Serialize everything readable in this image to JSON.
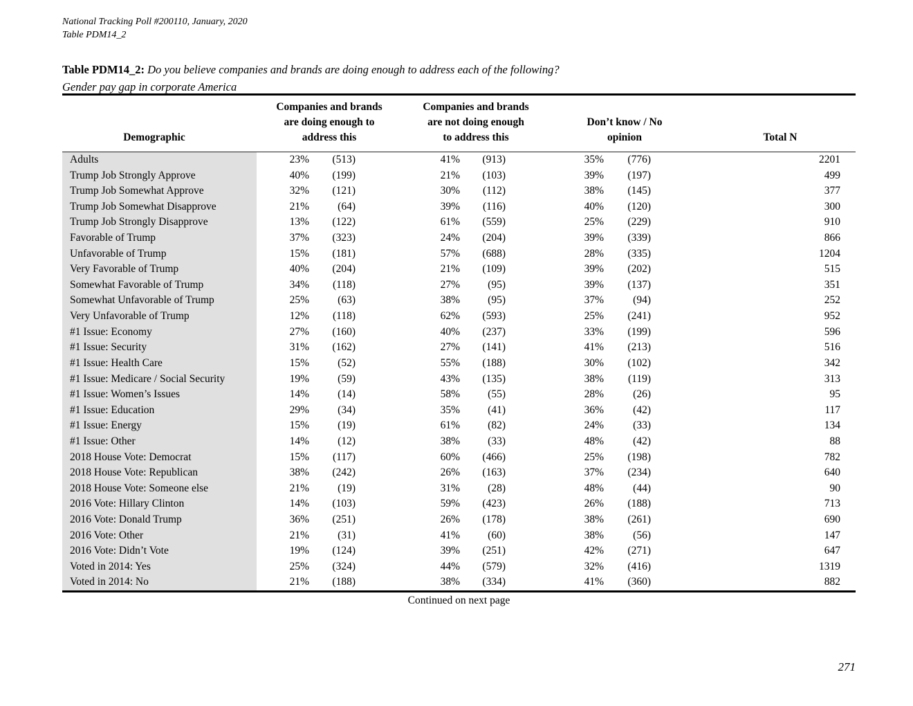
{
  "meta": {
    "line1": "National Tracking Poll #200110, January, 2020",
    "line2": "Table PDM14_2"
  },
  "title": {
    "label": "Table PDM14_2:",
    "question": "Do you believe companies and brands are doing enough to address each of the following?",
    "subtitle": "Gender pay gap in corporate America"
  },
  "table": {
    "headers": {
      "demographic": "Demographic",
      "doing_enough": "Companies and brands\nare doing enough to\naddress this",
      "not_doing_enough": "Companies and brands\nare not doing enough\nto address this",
      "dont_know": "Don’t know / No\nopinion",
      "total_n": "Total N"
    },
    "rows": [
      {
        "label": "Adults",
        "pct1": "23%",
        "n1": "(513)",
        "pct2": "41%",
        "n2": "(913)",
        "pct3": "35%",
        "n3": "(776)",
        "total": "2201"
      },
      {
        "label": "Trump Job Strongly Approve",
        "pct1": "40%",
        "n1": "(199)",
        "pct2": "21%",
        "n2": "(103)",
        "pct3": "39%",
        "n3": "(197)",
        "total": "499"
      },
      {
        "label": "Trump Job Somewhat Approve",
        "pct1": "32%",
        "n1": "(121)",
        "pct2": "30%",
        "n2": "(112)",
        "pct3": "38%",
        "n3": "(145)",
        "total": "377"
      },
      {
        "label": "Trump Job Somewhat Disapprove",
        "pct1": "21%",
        "n1": "(64)",
        "pct2": "39%",
        "n2": "(116)",
        "pct3": "40%",
        "n3": "(120)",
        "total": "300"
      },
      {
        "label": "Trump Job Strongly Disapprove",
        "pct1": "13%",
        "n1": "(122)",
        "pct2": "61%",
        "n2": "(559)",
        "pct3": "25%",
        "n3": "(229)",
        "total": "910"
      },
      {
        "label": "Favorable of Trump",
        "pct1": "37%",
        "n1": "(323)",
        "pct2": "24%",
        "n2": "(204)",
        "pct3": "39%",
        "n3": "(339)",
        "total": "866"
      },
      {
        "label": "Unfavorable of Trump",
        "pct1": "15%",
        "n1": "(181)",
        "pct2": "57%",
        "n2": "(688)",
        "pct3": "28%",
        "n3": "(335)",
        "total": "1204"
      },
      {
        "label": "Very Favorable of Trump",
        "pct1": "40%",
        "n1": "(204)",
        "pct2": "21%",
        "n2": "(109)",
        "pct3": "39%",
        "n3": "(202)",
        "total": "515"
      },
      {
        "label": "Somewhat Favorable of Trump",
        "pct1": "34%",
        "n1": "(118)",
        "pct2": "27%",
        "n2": "(95)",
        "pct3": "39%",
        "n3": "(137)",
        "total": "351"
      },
      {
        "label": "Somewhat Unfavorable of Trump",
        "pct1": "25%",
        "n1": "(63)",
        "pct2": "38%",
        "n2": "(95)",
        "pct3": "37%",
        "n3": "(94)",
        "total": "252"
      },
      {
        "label": "Very Unfavorable of Trump",
        "pct1": "12%",
        "n1": "(118)",
        "pct2": "62%",
        "n2": "(593)",
        "pct3": "25%",
        "n3": "(241)",
        "total": "952"
      },
      {
        "label": "#1 Issue: Economy",
        "pct1": "27%",
        "n1": "(160)",
        "pct2": "40%",
        "n2": "(237)",
        "pct3": "33%",
        "n3": "(199)",
        "total": "596"
      },
      {
        "label": "#1 Issue: Security",
        "pct1": "31%",
        "n1": "(162)",
        "pct2": "27%",
        "n2": "(141)",
        "pct3": "41%",
        "n3": "(213)",
        "total": "516"
      },
      {
        "label": "#1 Issue: Health Care",
        "pct1": "15%",
        "n1": "(52)",
        "pct2": "55%",
        "n2": "(188)",
        "pct3": "30%",
        "n3": "(102)",
        "total": "342"
      },
      {
        "label": "#1 Issue: Medicare / Social Security",
        "pct1": "19%",
        "n1": "(59)",
        "pct2": "43%",
        "n2": "(135)",
        "pct3": "38%",
        "n3": "(119)",
        "total": "313"
      },
      {
        "label": "#1 Issue: Women’s Issues",
        "pct1": "14%",
        "n1": "(14)",
        "pct2": "58%",
        "n2": "(55)",
        "pct3": "28%",
        "n3": "(26)",
        "total": "95"
      },
      {
        "label": "#1 Issue: Education",
        "pct1": "29%",
        "n1": "(34)",
        "pct2": "35%",
        "n2": "(41)",
        "pct3": "36%",
        "n3": "(42)",
        "total": "117"
      },
      {
        "label": "#1 Issue: Energy",
        "pct1": "15%",
        "n1": "(19)",
        "pct2": "61%",
        "n2": "(82)",
        "pct3": "24%",
        "n3": "(33)",
        "total": "134"
      },
      {
        "label": "#1 Issue: Other",
        "pct1": "14%",
        "n1": "(12)",
        "pct2": "38%",
        "n2": "(33)",
        "pct3": "48%",
        "n3": "(42)",
        "total": "88"
      },
      {
        "label": "2018 House Vote: Democrat",
        "pct1": "15%",
        "n1": "(117)",
        "pct2": "60%",
        "n2": "(466)",
        "pct3": "25%",
        "n3": "(198)",
        "total": "782"
      },
      {
        "label": "2018 House Vote: Republican",
        "pct1": "38%",
        "n1": "(242)",
        "pct2": "26%",
        "n2": "(163)",
        "pct3": "37%",
        "n3": "(234)",
        "total": "640"
      },
      {
        "label": "2018 House Vote: Someone else",
        "pct1": "21%",
        "n1": "(19)",
        "pct2": "31%",
        "n2": "(28)",
        "pct3": "48%",
        "n3": "(44)",
        "total": "90"
      },
      {
        "label": "2016 Vote: Hillary Clinton",
        "pct1": "14%",
        "n1": "(103)",
        "pct2": "59%",
        "n2": "(423)",
        "pct3": "26%",
        "n3": "(188)",
        "total": "713"
      },
      {
        "label": "2016 Vote: Donald Trump",
        "pct1": "36%",
        "n1": "(251)",
        "pct2": "26%",
        "n2": "(178)",
        "pct3": "38%",
        "n3": "(261)",
        "total": "690"
      },
      {
        "label": "2016 Vote: Other",
        "pct1": "21%",
        "n1": "(31)",
        "pct2": "41%",
        "n2": "(60)",
        "pct3": "38%",
        "n3": "(56)",
        "total": "147"
      },
      {
        "label": "2016 Vote: Didn’t Vote",
        "pct1": "19%",
        "n1": "(124)",
        "pct2": "39%",
        "n2": "(251)",
        "pct3": "42%",
        "n3": "(271)",
        "total": "647"
      },
      {
        "label": "Voted in 2014: Yes",
        "pct1": "25%",
        "n1": "(324)",
        "pct2": "44%",
        "n2": "(579)",
        "pct3": "32%",
        "n3": "(416)",
        "total": "1319"
      },
      {
        "label": "Voted in 2014: No",
        "pct1": "21%",
        "n1": "(188)",
        "pct2": "38%",
        "n2": "(334)",
        "pct3": "41%",
        "n3": "(360)",
        "total": "882"
      }
    ]
  },
  "footer": {
    "continued": "Continued on next page",
    "page_number": "271"
  },
  "colors": {
    "shade": "#e0e0e0",
    "text": "#000000"
  }
}
